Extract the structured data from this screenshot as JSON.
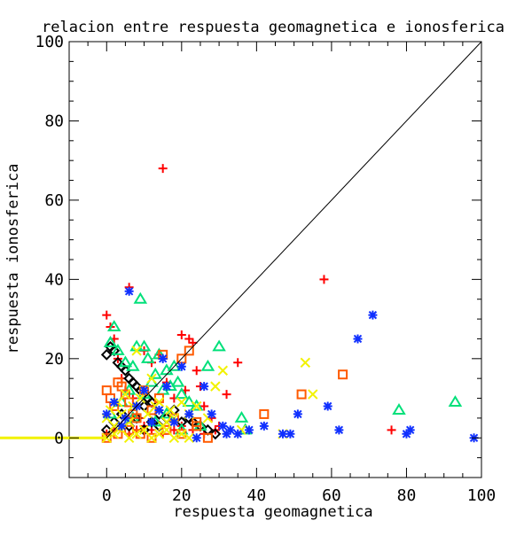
{
  "chart_data": {
    "type": "scatter",
    "title": "relacion entre respuesta geomagnetica e ionosferica",
    "xlabel": "respuesta geomagnetica",
    "ylabel": "respuesta ionosferica",
    "xlim": [
      -10,
      100
    ],
    "ylim": [
      -10,
      100
    ],
    "xticks": [
      "0",
      "20",
      "40",
      "60",
      "80",
      "100"
    ],
    "yticks": [
      "0",
      "20",
      "40",
      "60",
      "80",
      "100"
    ],
    "grid": false,
    "legend": "none",
    "reference_line": {
      "x": [
        0,
        100
      ],
      "y": [
        0,
        100
      ],
      "color": "#000000"
    },
    "baseline_band": {
      "x": [
        -10,
        0
      ],
      "y": 0,
      "color": "#f2f200"
    },
    "series": [
      {
        "marker": "plus",
        "color": "#ff0000",
        "x": [
          0,
          1,
          2,
          3,
          4,
          5,
          6,
          7,
          8,
          9,
          10,
          12,
          14,
          15,
          16,
          18,
          20,
          21,
          22,
          23,
          24,
          25,
          26,
          28,
          30,
          32,
          35,
          58,
          76,
          0,
          2,
          4,
          6,
          8,
          10,
          12,
          15,
          18,
          20,
          23,
          26,
          29
        ],
        "y": [
          31,
          28,
          25,
          20,
          15,
          12,
          38,
          10,
          8,
          5,
          22,
          19,
          21,
          68,
          14,
          10,
          26,
          12,
          25,
          24,
          17,
          13,
          8,
          5,
          3,
          11,
          19,
          40,
          2,
          1,
          2,
          3,
          1,
          2,
          3,
          2,
          1,
          2,
          3,
          2,
          1,
          2
        ]
      },
      {
        "marker": "diamond",
        "color": "#000000",
        "x": [
          0,
          1,
          2,
          3,
          4,
          5,
          6,
          7,
          8,
          9,
          10,
          11,
          12,
          14,
          16,
          18,
          20,
          22,
          23,
          25,
          27,
          29,
          0,
          2,
          4,
          6,
          8,
          10,
          12,
          14
        ],
        "y": [
          21,
          23,
          22,
          19,
          18,
          17,
          15,
          14,
          13,
          12,
          8,
          10,
          9,
          6,
          5,
          7,
          4,
          5,
          4,
          3,
          2,
          1,
          2,
          4,
          6,
          3,
          5,
          2,
          4,
          3
        ]
      },
      {
        "marker": "triangle",
        "color": "#00e07a",
        "x": [
          1,
          2,
          3,
          5,
          6,
          7,
          8,
          9,
          10,
          11,
          12,
          13,
          14,
          15,
          16,
          17,
          18,
          19,
          20,
          22,
          24,
          27,
          30,
          36,
          37,
          78,
          93,
          1,
          4,
          7,
          10,
          13,
          16,
          20,
          25
        ],
        "y": [
          24,
          28,
          22,
          19,
          12,
          18,
          23,
          35,
          23,
          20,
          14,
          16,
          21,
          12,
          17,
          13,
          18,
          14,
          11,
          9,
          8,
          18,
          23,
          5,
          2,
          7,
          9,
          6,
          9,
          5,
          11,
          4,
          6,
          2,
          3
        ]
      },
      {
        "marker": "square",
        "color": "#ff5a00",
        "x": [
          0,
          1,
          2,
          3,
          4,
          5,
          6,
          7,
          8,
          10,
          12,
          14,
          15,
          18,
          20,
          22,
          24,
          27,
          42,
          52,
          63,
          0,
          3,
          6,
          9,
          12,
          16,
          20,
          24
        ],
        "y": [
          12,
          10,
          8,
          14,
          13,
          11,
          9,
          6,
          5,
          12,
          7,
          10,
          21,
          5,
          20,
          22,
          4,
          0,
          6,
          11,
          16,
          0,
          1,
          2,
          1,
          0,
          2,
          1,
          3
        ]
      },
      {
        "marker": "x",
        "color": "#f2f200",
        "x": [
          0,
          1,
          2,
          3,
          4,
          5,
          6,
          7,
          8,
          9,
          10,
          11,
          12,
          13,
          14,
          15,
          16,
          17,
          18,
          20,
          22,
          24,
          27,
          29,
          31,
          36,
          47,
          53,
          55,
          0,
          2,
          4,
          6,
          8,
          10,
          12,
          14,
          16,
          18,
          20,
          22
        ],
        "y": [
          5,
          7,
          3,
          9,
          6,
          11,
          4,
          8,
          22,
          10,
          12,
          6,
          15,
          8,
          9,
          3,
          4,
          7,
          5,
          9,
          6,
          8,
          5,
          13,
          17,
          2,
          1,
          19,
          11,
          0,
          1,
          2,
          0,
          1,
          2,
          0,
          1,
          2,
          0,
          1,
          0
        ]
      },
      {
        "marker": "asterisk",
        "color": "#1030ff",
        "x": [
          0,
          2,
          4,
          5,
          6,
          8,
          10,
          12,
          14,
          15,
          16,
          18,
          20,
          22,
          24,
          26,
          28,
          31,
          32,
          33,
          35,
          38,
          42,
          47,
          49,
          51,
          59,
          62,
          67,
          71,
          80,
          81,
          98
        ],
        "y": [
          6,
          9,
          3,
          5,
          37,
          8,
          12,
          4,
          7,
          20,
          13,
          4,
          18,
          6,
          0,
          13,
          6,
          3,
          1,
          2,
          1,
          2,
          3,
          1,
          1,
          6,
          8,
          2,
          25,
          31,
          1,
          2,
          0
        ]
      }
    ]
  }
}
